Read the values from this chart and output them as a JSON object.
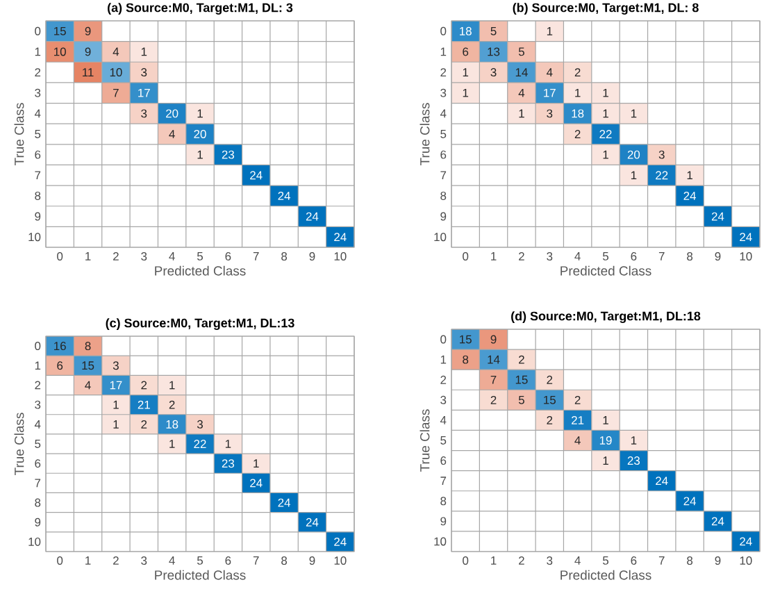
{
  "chart_data": [
    {
      "type": "heatmap",
      "title": "(a) Source:M0, Target:M1, DL: 3",
      "xlabel": "Predicted Class",
      "ylabel": "True Class",
      "categories": [
        "0",
        "1",
        "2",
        "3",
        "4",
        "5",
        "6",
        "7",
        "8",
        "9",
        "10"
      ],
      "y_categories": [
        "0",
        "1",
        "2",
        "3",
        "4",
        "5",
        "6",
        "7",
        "8",
        "9",
        "10"
      ],
      "data_labels": true,
      "cells": [
        [
          15,
          9,
          null,
          null,
          null,
          null,
          null,
          null,
          null,
          null,
          null
        ],
        [
          10,
          9,
          4,
          1,
          null,
          null,
          null,
          null,
          null,
          null,
          null
        ],
        [
          null,
          11,
          10,
          3,
          null,
          null,
          null,
          null,
          null,
          null,
          null
        ],
        [
          null,
          null,
          7,
          17,
          null,
          null,
          null,
          null,
          null,
          null,
          null
        ],
        [
          null,
          null,
          null,
          3,
          20,
          1,
          null,
          null,
          null,
          null,
          null
        ],
        [
          null,
          null,
          null,
          null,
          4,
          20,
          null,
          null,
          null,
          null,
          null
        ],
        [
          null,
          null,
          null,
          null,
          null,
          1,
          23,
          null,
          null,
          null,
          null
        ],
        [
          null,
          null,
          null,
          null,
          null,
          null,
          null,
          24,
          null,
          null,
          null
        ],
        [
          null,
          null,
          null,
          null,
          null,
          null,
          null,
          null,
          24,
          null,
          null
        ],
        [
          null,
          null,
          null,
          null,
          null,
          null,
          null,
          null,
          null,
          24,
          null
        ],
        [
          null,
          null,
          null,
          null,
          null,
          null,
          null,
          null,
          null,
          null,
          24
        ]
      ]
    },
    {
      "type": "heatmap",
      "title": "(b) Source:M0, Target:M1, DL: 8",
      "xlabel": "Predicted Class",
      "ylabel": "True Class",
      "categories": [
        "0",
        "1",
        "2",
        "3",
        "4",
        "5",
        "6",
        "7",
        "8",
        "9",
        "10"
      ],
      "y_categories": [
        "0",
        "1",
        "2",
        "3",
        "4",
        "5",
        "6",
        "7",
        "8",
        "9",
        "10"
      ],
      "data_labels": true,
      "cells": [
        [
          18,
          5,
          null,
          1,
          null,
          null,
          null,
          null,
          null,
          null,
          null
        ],
        [
          6,
          13,
          5,
          null,
          null,
          null,
          null,
          null,
          null,
          null,
          null
        ],
        [
          1,
          3,
          14,
          4,
          2,
          null,
          null,
          null,
          null,
          null,
          null
        ],
        [
          1,
          null,
          4,
          17,
          1,
          1,
          null,
          null,
          null,
          null,
          null
        ],
        [
          null,
          null,
          1,
          3,
          18,
          1,
          1,
          null,
          null,
          null,
          null
        ],
        [
          null,
          null,
          null,
          null,
          2,
          22,
          null,
          null,
          null,
          null,
          null
        ],
        [
          null,
          null,
          null,
          null,
          null,
          1,
          20,
          3,
          null,
          null,
          null
        ],
        [
          null,
          null,
          null,
          null,
          null,
          null,
          1,
          22,
          1,
          null,
          null
        ],
        [
          null,
          null,
          null,
          null,
          null,
          null,
          null,
          null,
          24,
          null,
          null
        ],
        [
          null,
          null,
          null,
          null,
          null,
          null,
          null,
          null,
          null,
          24,
          null
        ],
        [
          null,
          null,
          null,
          null,
          null,
          null,
          null,
          null,
          null,
          null,
          24
        ]
      ]
    },
    {
      "type": "heatmap",
      "title": "(c) Source:M0, Target:M1, DL:13",
      "xlabel": "Predicted Class",
      "ylabel": "True Class",
      "categories": [
        "0",
        "1",
        "2",
        "3",
        "4",
        "5",
        "6",
        "7",
        "8",
        "9",
        "10"
      ],
      "y_categories": [
        "0",
        "1",
        "2",
        "3",
        "4",
        "5",
        "6",
        "7",
        "8",
        "9",
        "10"
      ],
      "data_labels": true,
      "cells": [
        [
          16,
          8,
          null,
          null,
          null,
          null,
          null,
          null,
          null,
          null,
          null
        ],
        [
          6,
          15,
          3,
          null,
          null,
          null,
          null,
          null,
          null,
          null,
          null
        ],
        [
          null,
          4,
          17,
          2,
          1,
          null,
          null,
          null,
          null,
          null,
          null
        ],
        [
          null,
          null,
          1,
          21,
          2,
          null,
          null,
          null,
          null,
          null,
          null
        ],
        [
          null,
          null,
          1,
          2,
          18,
          3,
          null,
          null,
          null,
          null,
          null
        ],
        [
          null,
          null,
          null,
          null,
          1,
          22,
          1,
          null,
          null,
          null,
          null
        ],
        [
          null,
          null,
          null,
          null,
          null,
          null,
          23,
          1,
          null,
          null,
          null
        ],
        [
          null,
          null,
          null,
          null,
          null,
          null,
          null,
          24,
          null,
          null,
          null
        ],
        [
          null,
          null,
          null,
          null,
          null,
          null,
          null,
          null,
          24,
          null,
          null
        ],
        [
          null,
          null,
          null,
          null,
          null,
          null,
          null,
          null,
          null,
          24,
          null
        ],
        [
          null,
          null,
          null,
          null,
          null,
          null,
          null,
          null,
          null,
          null,
          24
        ]
      ]
    },
    {
      "type": "heatmap",
      "title": "(d) Source:M0, Target:M1, DL:18",
      "xlabel": "Predicted Class",
      "ylabel": "True Class",
      "categories": [
        "0",
        "1",
        "2",
        "3",
        "4",
        "5",
        "6",
        "7",
        "8",
        "9",
        "10"
      ],
      "y_categories": [
        "0",
        "1",
        "2",
        "3",
        "4",
        "5",
        "6",
        "7",
        "8",
        "9",
        "10"
      ],
      "data_labels": true,
      "cells": [
        [
          15,
          9,
          null,
          null,
          null,
          null,
          null,
          null,
          null,
          null,
          null
        ],
        [
          8,
          14,
          2,
          null,
          null,
          null,
          null,
          null,
          null,
          null,
          null
        ],
        [
          null,
          7,
          15,
          2,
          null,
          null,
          null,
          null,
          null,
          null,
          null
        ],
        [
          null,
          2,
          5,
          15,
          2,
          null,
          null,
          null,
          null,
          null,
          null
        ],
        [
          null,
          null,
          null,
          2,
          21,
          1,
          null,
          null,
          null,
          null,
          null
        ],
        [
          null,
          null,
          null,
          null,
          4,
          19,
          1,
          null,
          null,
          null,
          null
        ],
        [
          null,
          null,
          null,
          null,
          null,
          1,
          23,
          null,
          null,
          null,
          null
        ],
        [
          null,
          null,
          null,
          null,
          null,
          null,
          null,
          24,
          null,
          null,
          null
        ],
        [
          null,
          null,
          null,
          null,
          null,
          null,
          null,
          null,
          24,
          null,
          null
        ],
        [
          null,
          null,
          null,
          null,
          null,
          null,
          null,
          null,
          null,
          24,
          null
        ],
        [
          null,
          null,
          null,
          null,
          null,
          null,
          null,
          null,
          null,
          null,
          24
        ]
      ]
    }
  ]
}
